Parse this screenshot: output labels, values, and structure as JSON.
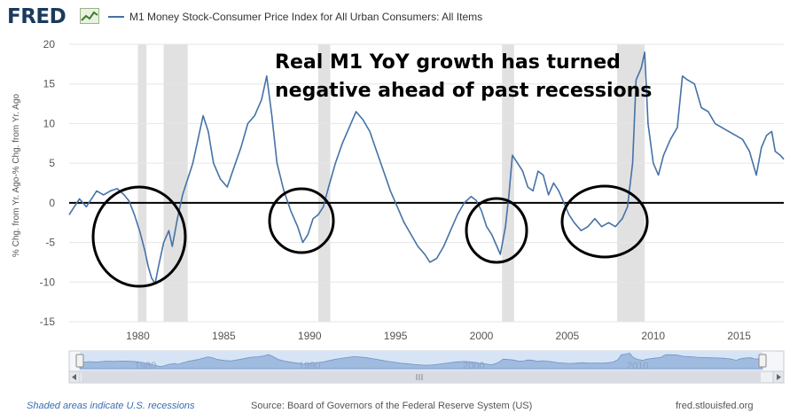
{
  "header": {
    "logo_text": "FRED",
    "logo_icon": "chart-line-icon",
    "legend_label": "M1 Money Stock-Consumer Price Index for All Urban Consumers: All Items",
    "series_color": "#4572a7"
  },
  "annotation": {
    "line1": "Real M1 YoY growth has turned",
    "line2": "negative ahead of past recessions"
  },
  "footer": {
    "recession_note": "Shaded areas indicate U.S. recessions",
    "source": "Source: Board of Governors of the Federal Reserve System (US)",
    "site": "fred.stlouisfed.org"
  },
  "navigator": {
    "tick_labels": [
      "1980",
      "1990",
      "2000",
      "2010"
    ],
    "scroll_left_icon": "chevron-left-icon",
    "scroll_right_icon": "chevron-right-icon",
    "grip_icon": "grip-icon"
  },
  "chart_data": {
    "type": "line",
    "ylabel": "% Chg. from Yr. Ago-% Chg. from Yr. Ago",
    "xlim": [
      1976.0,
      2017.6
    ],
    "ylim": [
      -15,
      20
    ],
    "x_ticks": [
      1980,
      1985,
      1990,
      1995,
      2000,
      2005,
      2010,
      2015
    ],
    "y_ticks": [
      -15,
      -10,
      -5,
      0,
      5,
      10,
      15,
      20
    ],
    "grid": "horizontal",
    "recessions": [
      [
        1980.0,
        1980.5
      ],
      [
        1981.5,
        1982.9
      ],
      [
        1990.5,
        1991.2
      ],
      [
        2001.2,
        2001.9
      ],
      [
        2007.9,
        2009.5
      ]
    ],
    "series": [
      {
        "values": [
          [
            1976.0,
            -1.5
          ],
          [
            1976.3,
            -0.5
          ],
          [
            1976.6,
            0.5
          ],
          [
            1977.0,
            -0.5
          ],
          [
            1977.3,
            0.5
          ],
          [
            1977.6,
            1.5
          ],
          [
            1978.0,
            1.0
          ],
          [
            1978.4,
            1.5
          ],
          [
            1978.8,
            1.8
          ],
          [
            1979.2,
            1.0
          ],
          [
            1979.5,
            0.2
          ],
          [
            1979.8,
            -1.5
          ],
          [
            1980.1,
            -3.5
          ],
          [
            1980.4,
            -6.0
          ],
          [
            1980.6,
            -8.0
          ],
          [
            1980.8,
            -9.5
          ],
          [
            1981.0,
            -10.2
          ],
          [
            1981.2,
            -8.0
          ],
          [
            1981.5,
            -5.0
          ],
          [
            1981.8,
            -3.5
          ],
          [
            1982.0,
            -5.5
          ],
          [
            1982.3,
            -2.0
          ],
          [
            1982.6,
            1.0
          ],
          [
            1982.9,
            3.0
          ],
          [
            1983.2,
            5.0
          ],
          [
            1983.5,
            8.0
          ],
          [
            1983.8,
            11.0
          ],
          [
            1984.1,
            9.0
          ],
          [
            1984.4,
            5.0
          ],
          [
            1984.8,
            3.0
          ],
          [
            1985.2,
            2.0
          ],
          [
            1985.6,
            4.5
          ],
          [
            1986.0,
            7.0
          ],
          [
            1986.4,
            10.0
          ],
          [
            1986.8,
            11.0
          ],
          [
            1987.2,
            13.0
          ],
          [
            1987.5,
            16.0
          ],
          [
            1987.8,
            11.0
          ],
          [
            1988.1,
            5.0
          ],
          [
            1988.5,
            1.5
          ],
          [
            1988.9,
            -1.0
          ],
          [
            1989.3,
            -3.0
          ],
          [
            1989.6,
            -5.0
          ],
          [
            1989.9,
            -4.0
          ],
          [
            1990.2,
            -2.0
          ],
          [
            1990.5,
            -1.5
          ],
          [
            1990.8,
            -0.5
          ],
          [
            1991.1,
            2.0
          ],
          [
            1991.5,
            5.0
          ],
          [
            1991.9,
            7.5
          ],
          [
            1992.3,
            9.5
          ],
          [
            1992.7,
            11.5
          ],
          [
            1993.1,
            10.5
          ],
          [
            1993.5,
            9.0
          ],
          [
            1993.9,
            6.5
          ],
          [
            1994.3,
            4.0
          ],
          [
            1994.7,
            1.5
          ],
          [
            1995.1,
            -0.5
          ],
          [
            1995.5,
            -2.5
          ],
          [
            1995.9,
            -4.0
          ],
          [
            1996.3,
            -5.5
          ],
          [
            1996.7,
            -6.5
          ],
          [
            1997.0,
            -7.5
          ],
          [
            1997.4,
            -7.0
          ],
          [
            1997.8,
            -5.5
          ],
          [
            1998.2,
            -3.5
          ],
          [
            1998.6,
            -1.5
          ],
          [
            1999.0,
            0.0
          ],
          [
            1999.4,
            0.8
          ],
          [
            1999.7,
            0.3
          ],
          [
            2000.0,
            -1.0
          ],
          [
            2000.3,
            -3.0
          ],
          [
            2000.6,
            -4.0
          ],
          [
            2000.9,
            -5.5
          ],
          [
            2001.1,
            -6.5
          ],
          [
            2001.4,
            -3.0
          ],
          [
            2001.6,
            1.0
          ],
          [
            2001.8,
            6.0
          ],
          [
            2002.1,
            5.0
          ],
          [
            2002.4,
            4.0
          ],
          [
            2002.7,
            2.0
          ],
          [
            2003.0,
            1.5
          ],
          [
            2003.3,
            4.0
          ],
          [
            2003.6,
            3.5
          ],
          [
            2003.9,
            1.0
          ],
          [
            2004.2,
            2.5
          ],
          [
            2004.5,
            1.5
          ],
          [
            2004.8,
            0.0
          ],
          [
            2005.1,
            -1.5
          ],
          [
            2005.4,
            -2.5
          ],
          [
            2005.8,
            -3.5
          ],
          [
            2006.2,
            -3.0
          ],
          [
            2006.6,
            -2.0
          ],
          [
            2007.0,
            -3.0
          ],
          [
            2007.4,
            -2.5
          ],
          [
            2007.8,
            -3.0
          ],
          [
            2008.2,
            -2.0
          ],
          [
            2008.5,
            -0.5
          ],
          [
            2008.8,
            5.0
          ],
          [
            2009.0,
            15.5
          ],
          [
            2009.3,
            17.0
          ],
          [
            2009.5,
            19.0
          ],
          [
            2009.7,
            10.0
          ],
          [
            2010.0,
            5.0
          ],
          [
            2010.3,
            3.5
          ],
          [
            2010.6,
            6.0
          ],
          [
            2011.0,
            8.0
          ],
          [
            2011.4,
            9.5
          ],
          [
            2011.7,
            16.0
          ],
          [
            2012.0,
            15.5
          ],
          [
            2012.4,
            15.0
          ],
          [
            2012.8,
            12.0
          ],
          [
            2013.2,
            11.5
          ],
          [
            2013.6,
            10.0
          ],
          [
            2014.0,
            9.5
          ],
          [
            2014.4,
            9.0
          ],
          [
            2014.8,
            8.5
          ],
          [
            2015.2,
            8.0
          ],
          [
            2015.6,
            6.5
          ],
          [
            2016.0,
            3.5
          ],
          [
            2016.3,
            7.0
          ],
          [
            2016.6,
            8.5
          ],
          [
            2016.9,
            9.0
          ],
          [
            2017.1,
            6.5
          ],
          [
            2017.4,
            6.0
          ],
          [
            2017.6,
            5.5
          ]
        ]
      }
    ]
  }
}
